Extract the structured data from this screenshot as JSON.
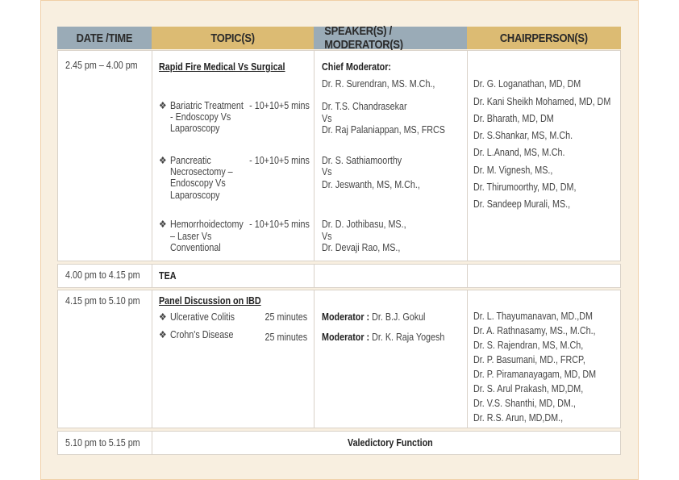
{
  "header": {
    "date_time": "DATE /TIME",
    "topics": "TOPIC(S)",
    "speakers": "SPEAKER(S) / MODERATOR(S)",
    "chairpersons": "CHAIRPERSON(S)"
  },
  "colors": {
    "header_blue": "#9aabb7",
    "header_gold": "#dcbb73",
    "panel_bg": "#f8efe0"
  },
  "bullet_icon": "diamond-bullet-icon",
  "rows": [
    {
      "time": "2.45 pm – 4.00  pm",
      "topic_title": "Rapid Fire Medical Vs Surgical",
      "topics": [
        {
          "lines": [
            "Bariatric Treatment",
            "- Endoscopy Vs",
            "Laparoscopy"
          ],
          "duration": "- 10+10+5 mins"
        },
        {
          "lines": [
            "Pancreatic",
            "Necrosectomy –",
            "Endoscopy Vs",
            "Laparoscopy"
          ],
          "duration": "- 10+10+5 mins"
        },
        {
          "lines": [
            "Hemorrhoidectomy",
            "– Laser Vs",
            "Conventional"
          ],
          "duration": "- 10+10+5 mins"
        }
      ],
      "chief_label": "Chief Moderator:",
      "chief": "Dr. R. Surendran, MS. M.Ch.,",
      "speakers": [
        [
          "Dr. T.S. Chandrasekar",
          "Vs",
          "Dr. Raj Palaniappan, MS, FRCS"
        ],
        [
          "Dr. S. Sathiamoorthy",
          "Vs",
          "Dr. Jeswanth, MS, M.Ch.,"
        ],
        [
          "Dr. D. Jothibasu, MS.,",
          "Vs",
          "Dr. Devaji Rao, MS.,"
        ]
      ],
      "chairs": [
        "Dr. G. Loganathan, MD, DM",
        "Dr. Kani Sheikh Mohamed, MD, DM",
        "Dr. Bharath, MD, DM",
        "Dr. S.Shankar, MS, M.Ch.",
        "Dr. L.Anand, MS, M.Ch.",
        "Dr. M. Vignesh, MS.,",
        "Dr. Thirumoorthy, MD, DM,",
        "Dr. Sandeep Murali, MS.,"
      ]
    },
    {
      "time": "4.00 pm to 4.15 pm",
      "topic": "TEA"
    },
    {
      "time": "4.15 pm to 5.10  pm",
      "topic_title": "Panel Discussion on IBD",
      "topics": [
        {
          "label": "Ulcerative Colitis",
          "duration": "25 minutes"
        },
        {
          "label": "Crohn's Disease",
          "duration": "25 minutes"
        }
      ],
      "moderator_label": "Moderator :",
      "moderators": [
        "Dr. B.J. Gokul",
        "Dr. K. Raja Yogesh"
      ],
      "chairs": [
        "Dr. L. Thayumanavan, MD.,DM",
        "Dr. A. Rathnasamy, MS., M.Ch.,",
        "Dr. S. Rajendran, MS, M.Ch,",
        "Dr. P.  Basumani, MD., FRCP,",
        "Dr. P.  Piramanayagam, MD, DM",
        "Dr. S. Arul Prakash, MD,DM,",
        "Dr. V.S. Shanthi, MD, DM.,",
        "Dr. R.S. Arun, MD,DM.,"
      ]
    },
    {
      "time": "5.10 pm to 5.15  pm",
      "topic": "Valedictory Function"
    }
  ]
}
